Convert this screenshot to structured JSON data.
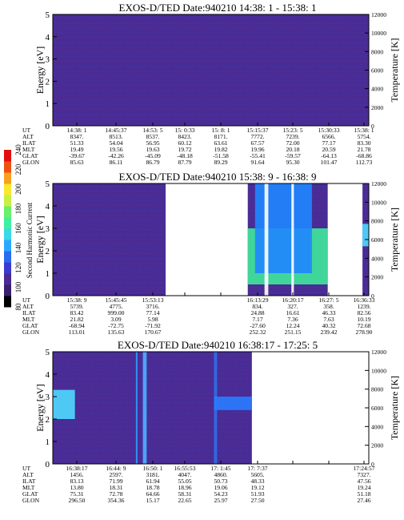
{
  "colors": {
    "background_fill": "#4a2b94",
    "line": "#000000"
  },
  "colorbar": {
    "label": "Second Harmonic Current",
    "ticks": [
      "80",
      "100",
      "120",
      "140",
      "160",
      "180",
      "200",
      "220",
      "240"
    ],
    "min": 80,
    "max": 240
  },
  "chart_data": [
    {
      "type": "heatmap",
      "title": "EXOS-D/TED   Date:940210  14:38: 1 - 15:38: 1",
      "ylabel": "Energy [eV]",
      "y2label": "Temperature [K]",
      "ylim": [
        0,
        5
      ],
      "y2lim": [
        0,
        12000
      ],
      "yticks": [
        "0",
        "1",
        "2",
        "3",
        "4",
        "5"
      ],
      "y2ticks": [
        "0",
        "2000",
        "4000",
        "6000",
        "8000",
        "10000",
        "12000"
      ],
      "data_range_fraction": [
        0.0,
        1.0
      ],
      "gaps": [],
      "features": [],
      "info_rows": [
        {
          "label": "UT",
          "values": [
            "14:38: 1",
            "14:45:37",
            "14:53: 5",
            "15: 0:33",
            "15: 8: 1",
            "15:15:37",
            "15:23: 5",
            "15:30:33",
            "15:38: 1"
          ]
        },
        {
          "label": "ALT",
          "values": [
            "8347.",
            "8513.",
            "8537.",
            "8423.",
            "8171.",
            "7772.",
            "7239.",
            "6566.",
            "5754."
          ]
        },
        {
          "label": "ILAT",
          "values": [
            "51.33",
            "54.04",
            "56.95",
            "60.12",
            "63.61",
            "67.57",
            "72.00",
            "77.17",
            "83.30"
          ]
        },
        {
          "label": "MLT",
          "values": [
            "19.49",
            "19.56",
            "19.63",
            "19.72",
            "19.82",
            "19.96",
            "20.18",
            "20.59",
            "21.78"
          ]
        },
        {
          "label": "GLAT",
          "values": [
            "-39.67",
            "-42.26",
            "-45.09",
            "-48.18",
            "-51.58",
            "-55.41",
            "-59.57",
            "-64.13",
            "-68.86"
          ]
        },
        {
          "label": "GLON",
          "values": [
            "85.63",
            "86.11",
            "86.79",
            "87.79",
            "89.29",
            "91.64",
            "95.30",
            "101.47",
            "112.73"
          ]
        }
      ]
    },
    {
      "type": "heatmap",
      "title": "EXOS-D/TED   Date:940210  15:38: 9 - 16:38: 9",
      "ylabel": "Energy [eV]",
      "y2label": "Temperature [K]",
      "ylim": [
        0,
        5
      ],
      "y2lim": [
        0,
        12000
      ],
      "yticks": [
        "0",
        "1",
        "2",
        "3",
        "4",
        "5"
      ],
      "y2ticks": [
        "0",
        "2000",
        "4000",
        "6000",
        "8000",
        "10000",
        "12000"
      ],
      "data_range_fraction": [
        0.0,
        1.0
      ],
      "gaps": [
        [
          0.357,
          0.617
        ],
        [
          0.87,
          0.98
        ]
      ],
      "features": [
        {
          "kind": "blob",
          "x0": 0.617,
          "x1": 0.87,
          "e0": 0.5,
          "e1": 3.0,
          "color": "#3fe89a"
        },
        {
          "kind": "blob",
          "x0": 0.64,
          "x1": 0.82,
          "e0": 1.0,
          "e1": 5.0,
          "color": "#1f86ff"
        },
        {
          "kind": "stripe",
          "x": 0.67,
          "w": 0.012,
          "color": "#ffffff"
        },
        {
          "kind": "stripe",
          "x": 0.755,
          "w": 0.008,
          "color": "#ffffff"
        },
        {
          "kind": "blob",
          "x0": 0.98,
          "x1": 1.0,
          "e0": 2.2,
          "e1": 3.2,
          "color": "#4fd9ff"
        }
      ],
      "info_rows": [
        {
          "label": "UT",
          "values": [
            "15:38: 9",
            "15:45:45",
            "15:53:13",
            "",
            "",
            "16:13:29",
            "16:20:17",
            "16:27: 5",
            "16:36:33"
          ]
        },
        {
          "label": "ALT",
          "values": [
            "5739.",
            "4775.",
            "3716.",
            "",
            "",
            "834.",
            "327.",
            "358.",
            "1239."
          ]
        },
        {
          "label": "ILAT",
          "values": [
            "83.42",
            "999.00",
            "77.14",
            "",
            "",
            "24.88",
            "16.61",
            "46.33",
            "82.56"
          ]
        },
        {
          "label": "MLT",
          "values": [
            "21.82",
            "3.09",
            "5.98",
            "",
            "",
            "7.17",
            "7.36",
            "7.63",
            "10.19"
          ]
        },
        {
          "label": "GLAT",
          "values": [
            "-68.94",
            "-72.75",
            "-71.92",
            "",
            "",
            "-27.60",
            "12.24",
            "40.32",
            "72.68"
          ]
        },
        {
          "label": "GLON",
          "values": [
            "113.01",
            "135.63",
            "170.67",
            "",
            "",
            "252.32",
            "251.15",
            "239.42",
            "278.90"
          ]
        }
      ]
    },
    {
      "type": "heatmap",
      "title": "EXOS-D/TED   Date:940210  16:38:17 - 17:25: 5",
      "ylabel": "Energy [eV]",
      "y2label": "Temperature [K]",
      "ylim": [
        0,
        5
      ],
      "y2lim": [
        0,
        12000
      ],
      "yticks": [
        "0",
        "1",
        "2",
        "3",
        "4",
        "5"
      ],
      "y2ticks": [
        "0",
        "2000",
        "4000",
        "6000",
        "8000",
        "10000",
        "12000"
      ],
      "data_range_fraction": [
        0.0,
        0.63
      ],
      "gaps": [],
      "features": [
        {
          "kind": "blob",
          "x0": 0.0,
          "x1": 0.07,
          "e0": 2.0,
          "e1": 3.3,
          "color": "#4fd9ff"
        },
        {
          "kind": "stripe",
          "x": 0.285,
          "w": 0.012,
          "color": "#4fb0ff"
        },
        {
          "kind": "stripe",
          "x": 0.263,
          "w": 0.005,
          "color": "#2aa0ff"
        },
        {
          "kind": "stripe",
          "x": 0.51,
          "w": 0.01,
          "color": "#2f6fe8"
        },
        {
          "kind": "blob",
          "x0": 0.51,
          "x1": 0.63,
          "e0": 2.4,
          "e1": 3.0,
          "color": "#2a7cff"
        }
      ],
      "info_rows": [
        {
          "label": "UT",
          "values": [
            "16:38:17",
            "16:44: 9",
            "16:50: 1",
            "16:55:53",
            "17: 1:45",
            "17: 7:37",
            "",
            "",
            "17:24:57"
          ]
        },
        {
          "label": "ALT",
          "values": [
            "1456.",
            "2597.",
            "3181.",
            "4047.",
            "4860.",
            "5605.",
            "",
            "",
            "7327."
          ]
        },
        {
          "label": "ILAT",
          "values": [
            "83.13",
            "71.99",
            "61.94",
            "55.05",
            "50.73",
            "48.33",
            "",
            "",
            "47.56"
          ]
        },
        {
          "label": "MLT",
          "values": [
            "13.80",
            "18.31",
            "18.78",
            "18.96",
            "19.06",
            "19.12",
            "",
            "",
            "19.24"
          ]
        },
        {
          "label": "GLAT",
          "values": [
            "75.31",
            "72.78",
            "64.66",
            "58.31",
            "54.23",
            "51.93",
            "",
            "",
            "51.18"
          ]
        },
        {
          "label": "GLON",
          "values": [
            "296.50",
            "354.36",
            "15.17",
            "22.65",
            "25.97",
            "27.50",
            "",
            "",
            "27.46"
          ]
        }
      ]
    }
  ]
}
